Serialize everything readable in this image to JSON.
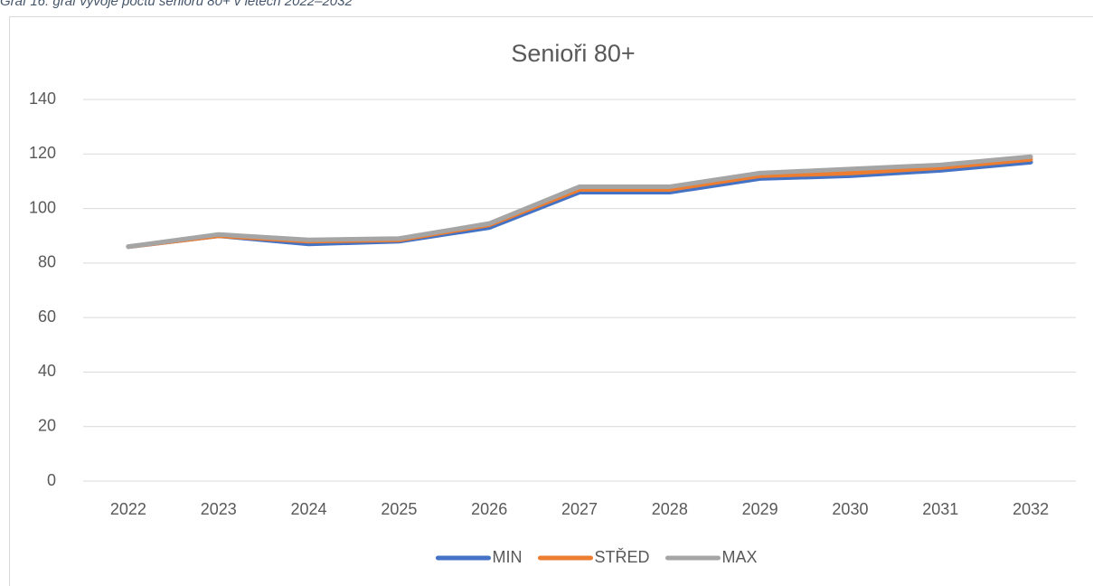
{
  "caption": "Graf 16: graf vývoje počtu seniorů 80+ v letech 2022–2032",
  "chart_data": {
    "type": "line",
    "title": "Senioři 80+",
    "categories": [
      "2022",
      "2023",
      "2024",
      "2025",
      "2026",
      "2027",
      "2028",
      "2029",
      "2030",
      "2031",
      "2032"
    ],
    "series": [
      {
        "name": "MIN",
        "color": "#4472c4",
        "values": [
          86,
          90,
          87,
          88,
          93,
          106,
          106,
          111,
          112,
          114,
          117
        ]
      },
      {
        "name": "STŘED",
        "color": "#ed7d31",
        "values": [
          86,
          90,
          88,
          88.5,
          94,
          107,
          107,
          112,
          113,
          115,
          118
        ]
      },
      {
        "name": "MAX",
        "color": "#a5a5a5",
        "values": [
          86,
          90.5,
          88.5,
          89,
          94.5,
          108,
          108,
          113,
          114.5,
          116,
          119
        ]
      }
    ],
    "ylim": [
      0,
      140
    ],
    "yticks": [
      0,
      20,
      40,
      60,
      80,
      100,
      120,
      140
    ],
    "grid": true,
    "legend": "bottom"
  }
}
